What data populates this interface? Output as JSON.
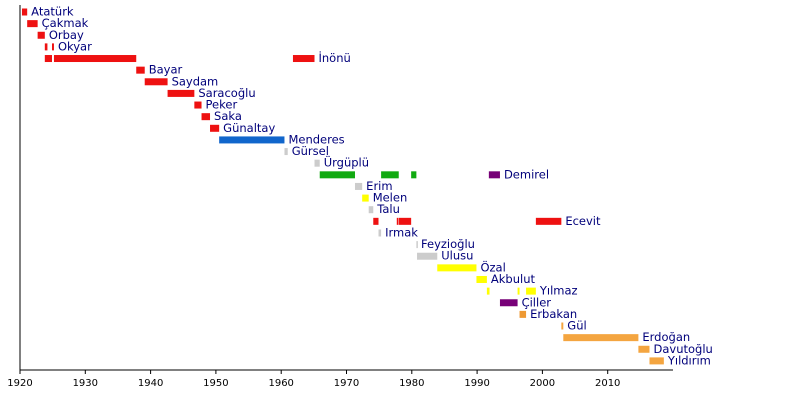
{
  "chart_data": {
    "type": "timeline",
    "xlim": [
      1920,
      2020
    ],
    "xticks": [
      1920,
      1930,
      1940,
      1950,
      1960,
      1970,
      1980,
      1990,
      2000,
      2010
    ],
    "series": [
      {
        "name": "Atatürk",
        "values": [
          [
            1920.3,
            1921.1
          ]
        ],
        "colors": [
          "#ee1111"
        ]
      },
      {
        "name": "Çakmak",
        "values": [
          [
            1921.1,
            1922.7
          ]
        ],
        "colors": [
          "#ee1111"
        ]
      },
      {
        "name": "Orbay",
        "values": [
          [
            1922.7,
            1923.8
          ]
        ],
        "colors": [
          "#ee1111"
        ]
      },
      {
        "name": "Okyar",
        "values": [
          [
            1923.8,
            1924.2
          ],
          [
            1924.9,
            1925.2
          ]
        ],
        "colors": [
          "#ee1111",
          "#ee1111"
        ]
      },
      {
        "name": "İnönü",
        "values": [
          [
            1923.8,
            1924.9
          ],
          [
            1925.2,
            1937.8
          ],
          [
            1961.8,
            1965.1
          ]
        ],
        "colors": [
          "#ee1111",
          "#ee1111",
          "#ee1111"
        ]
      },
      {
        "name": "Bayar",
        "values": [
          [
            1937.8,
            1939.1
          ]
        ],
        "colors": [
          "#ee1111"
        ]
      },
      {
        "name": "Saydam",
        "values": [
          [
            1939.1,
            1942.6
          ]
        ],
        "colors": [
          "#ee1111"
        ]
      },
      {
        "name": "Saracoğlu",
        "values": [
          [
            1942.6,
            1946.7
          ]
        ],
        "colors": [
          "#ee1111"
        ]
      },
      {
        "name": "Peker",
        "values": [
          [
            1946.7,
            1947.8
          ]
        ],
        "colors": [
          "#ee1111"
        ]
      },
      {
        "name": "Saka",
        "values": [
          [
            1947.8,
            1949.1
          ]
        ],
        "colors": [
          "#ee1111"
        ]
      },
      {
        "name": "Günaltay",
        "values": [
          [
            1949.1,
            1950.5
          ]
        ],
        "colors": [
          "#ee1111"
        ]
      },
      {
        "name": "Menderes",
        "values": [
          [
            1950.5,
            1960.5
          ]
        ],
        "colors": [
          "#1166cc"
        ]
      },
      {
        "name": "Gürsel",
        "values": [
          [
            1960.5,
            1961.0
          ]
        ],
        "colors": [
          "#cccccc"
        ]
      },
      {
        "name": "Ürgüplü",
        "values": [
          [
            1965.1,
            1965.9
          ]
        ],
        "colors": [
          "#cccccc"
        ]
      },
      {
        "name": "Demirel",
        "values": [
          [
            1965.9,
            1971.3
          ],
          [
            1975.3,
            1978.0
          ],
          [
            1979.9,
            1980.7
          ],
          [
            1991.8,
            1993.5
          ]
        ],
        "colors": [
          "#11aa11",
          "#11aa11",
          "#11aa11",
          "#770077"
        ]
      },
      {
        "name": "Erim",
        "values": [
          [
            1971.3,
            1972.4
          ]
        ],
        "colors": [
          "#cccccc"
        ]
      },
      {
        "name": "Melen",
        "values": [
          [
            1972.4,
            1973.4
          ]
        ],
        "colors": [
          "#ffff00"
        ]
      },
      {
        "name": "Talu",
        "values": [
          [
            1973.4,
            1974.1
          ]
        ],
        "colors": [
          "#cccccc"
        ]
      },
      {
        "name": "Ecevit",
        "values": [
          [
            1974.1,
            1974.9
          ],
          [
            1977.7,
            1977.8
          ],
          [
            1978.0,
            1979.9
          ],
          [
            1999.0,
            2002.9
          ]
        ],
        "colors": [
          "#ee1111",
          "#ee1111",
          "#ee1111",
          "#ee1111"
        ]
      },
      {
        "name": "Irmak",
        "values": [
          [
            1974.9,
            1975.3
          ]
        ],
        "colors": [
          "#cccccc"
        ]
      },
      {
        "name": "Feyzioğlu",
        "values": [
          [
            1980.7,
            1980.8
          ]
        ],
        "colors": [
          "#cccccc"
        ]
      },
      {
        "name": "Ulusu",
        "values": [
          [
            1980.8,
            1983.9
          ]
        ],
        "colors": [
          "#cccccc"
        ]
      },
      {
        "name": "Özal",
        "values": [
          [
            1983.9,
            1989.9
          ]
        ],
        "colors": [
          "#ffff00"
        ]
      },
      {
        "name": "Akbulut",
        "values": [
          [
            1989.9,
            1991.5
          ]
        ],
        "colors": [
          "#ffff00"
        ]
      },
      {
        "name": "Yılmaz",
        "values": [
          [
            1991.5,
            1991.9
          ],
          [
            1996.2,
            1996.5
          ],
          [
            1997.5,
            1999.0
          ]
        ],
        "colors": [
          "#ffff00",
          "#ffff00",
          "#ffff00"
        ]
      },
      {
        "name": "Çiller",
        "values": [
          [
            1993.5,
            1996.2
          ]
        ],
        "colors": [
          "#770077"
        ]
      },
      {
        "name": "Erbakan",
        "values": [
          [
            1996.5,
            1997.5
          ]
        ],
        "colors": [
          "#ee9933"
        ]
      },
      {
        "name": "Gül",
        "values": [
          [
            2002.9,
            2003.2
          ]
        ],
        "colors": [
          "#f4a540"
        ]
      },
      {
        "name": "Erdoğan",
        "values": [
          [
            2003.2,
            2014.7
          ]
        ],
        "colors": [
          "#f4a540"
        ]
      },
      {
        "name": "Davutoğlu",
        "values": [
          [
            2014.7,
            2016.4
          ]
        ],
        "colors": [
          "#f4a540"
        ]
      },
      {
        "name": "Yıldırım",
        "values": [
          [
            2016.4,
            2018.6
          ]
        ],
        "colors": [
          "#f4a540"
        ]
      }
    ]
  }
}
